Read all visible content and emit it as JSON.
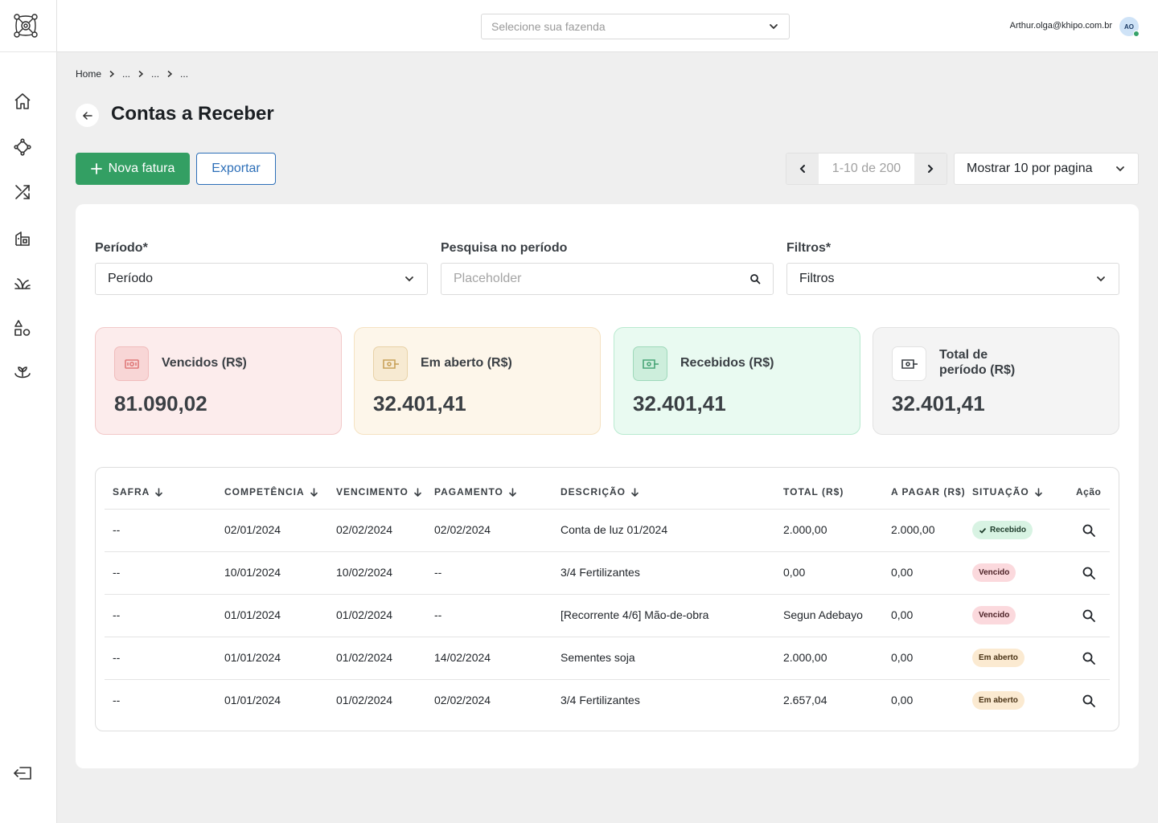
{
  "header": {
    "farm_placeholder": "Selecione sua fazenda",
    "user_email": "Arthur.olga@khipo.com.br",
    "avatar_initials": "AO"
  },
  "sidebar": {
    "items": [
      {
        "icon": "home-icon"
      },
      {
        "icon": "diamond-nodes-icon"
      },
      {
        "icon": "shuffle-icon"
      },
      {
        "icon": "farm-building-icon"
      },
      {
        "icon": "plant-leaves-icon"
      },
      {
        "icon": "shapes-icon"
      },
      {
        "icon": "sprout-hand-icon"
      }
    ],
    "logout_icon": "logout-icon"
  },
  "breadcrumb": [
    "Home",
    "...",
    "...",
    "..."
  ],
  "page": {
    "title": "Contas a Receber"
  },
  "actions": {
    "new_invoice": "Nova fatura",
    "export": "Exportar",
    "pager_text": "1-10 de 200",
    "per_page": "Mostrar 10 por pagina"
  },
  "filters": {
    "period_label": "Período*",
    "period_value": "Período",
    "search_label": "Pesquisa no período",
    "search_placeholder": "Placeholder",
    "filters_label": "Filtros*",
    "filters_value": "Filtros"
  },
  "cards": [
    {
      "label": "Vencidos (R$)",
      "value": "81.090,02",
      "bg": "#fcecec",
      "border": "#f2c9c9",
      "accent": "#e07a7a"
    },
    {
      "label": "Em aberto (R$)",
      "value": "32.401,41",
      "bg": "#fdf6ea",
      "border": "#f5e2c2",
      "accent": "#c9a25a"
    },
    {
      "label": "Recebidos (R$)",
      "value": "32.401,41",
      "bg": "#e9faf1",
      "border": "#b9ead0",
      "accent": "#4aa678"
    },
    {
      "label": "Total de período (R$)",
      "label_line1": "Total de",
      "label_line2": "período (R$)",
      "value": "32.401,41",
      "bg": "#f4f4f4",
      "border": "#e2e2e2",
      "accent": "#3a3f44"
    }
  ],
  "table": {
    "columns": [
      "SAFRA",
      "COMPETÊNCIA",
      "VENCIMENTO",
      "PAGAMENTO",
      "DESCRIÇÃO",
      "TOTAL (R$)",
      "A PAGAR (R$)",
      "SITUAÇÃO",
      "Ação"
    ],
    "rows": [
      {
        "safra": "--",
        "competencia": "02/01/2024",
        "vencimento": "02/02/2024",
        "pagamento": "02/02/2024",
        "descricao": "Conta de luz 01/2024",
        "total": "2.000,00",
        "a_pagar": "2.000,00",
        "situacao": "Recebido",
        "status": "recebido"
      },
      {
        "safra": "--",
        "competencia": "10/01/2024",
        "vencimento": "10/02/2024",
        "pagamento": "--",
        "descricao": "3/4 Fertilizantes",
        "total": "0,00",
        "a_pagar": "0,00",
        "situacao": "Vencido",
        "status": "vencido"
      },
      {
        "safra": "--",
        "competencia": "01/01/2024",
        "vencimento": "01/02/2024",
        "pagamento": "--",
        "descricao": "[Recorrente 4/6] Mão-de-obra",
        "total": "Segun Adebayo",
        "a_pagar": "0,00",
        "situacao": "Vencido",
        "status": "vencido"
      },
      {
        "safra": "--",
        "competencia": "01/01/2024",
        "vencimento": "01/02/2024",
        "pagamento": "14/02/2024",
        "descricao": "Sementes soja",
        "total": "2.000,00",
        "a_pagar": "0,00",
        "situacao": "Em aberto",
        "status": "aberto"
      },
      {
        "safra": "--",
        "competencia": "01/01/2024",
        "vencimento": "01/02/2024",
        "pagamento": "02/02/2024",
        "descricao": "3/4 Fertilizantes",
        "total": "2.657,04",
        "a_pagar": "0,00",
        "situacao": "Em aberto",
        "status": "aberto"
      }
    ]
  }
}
